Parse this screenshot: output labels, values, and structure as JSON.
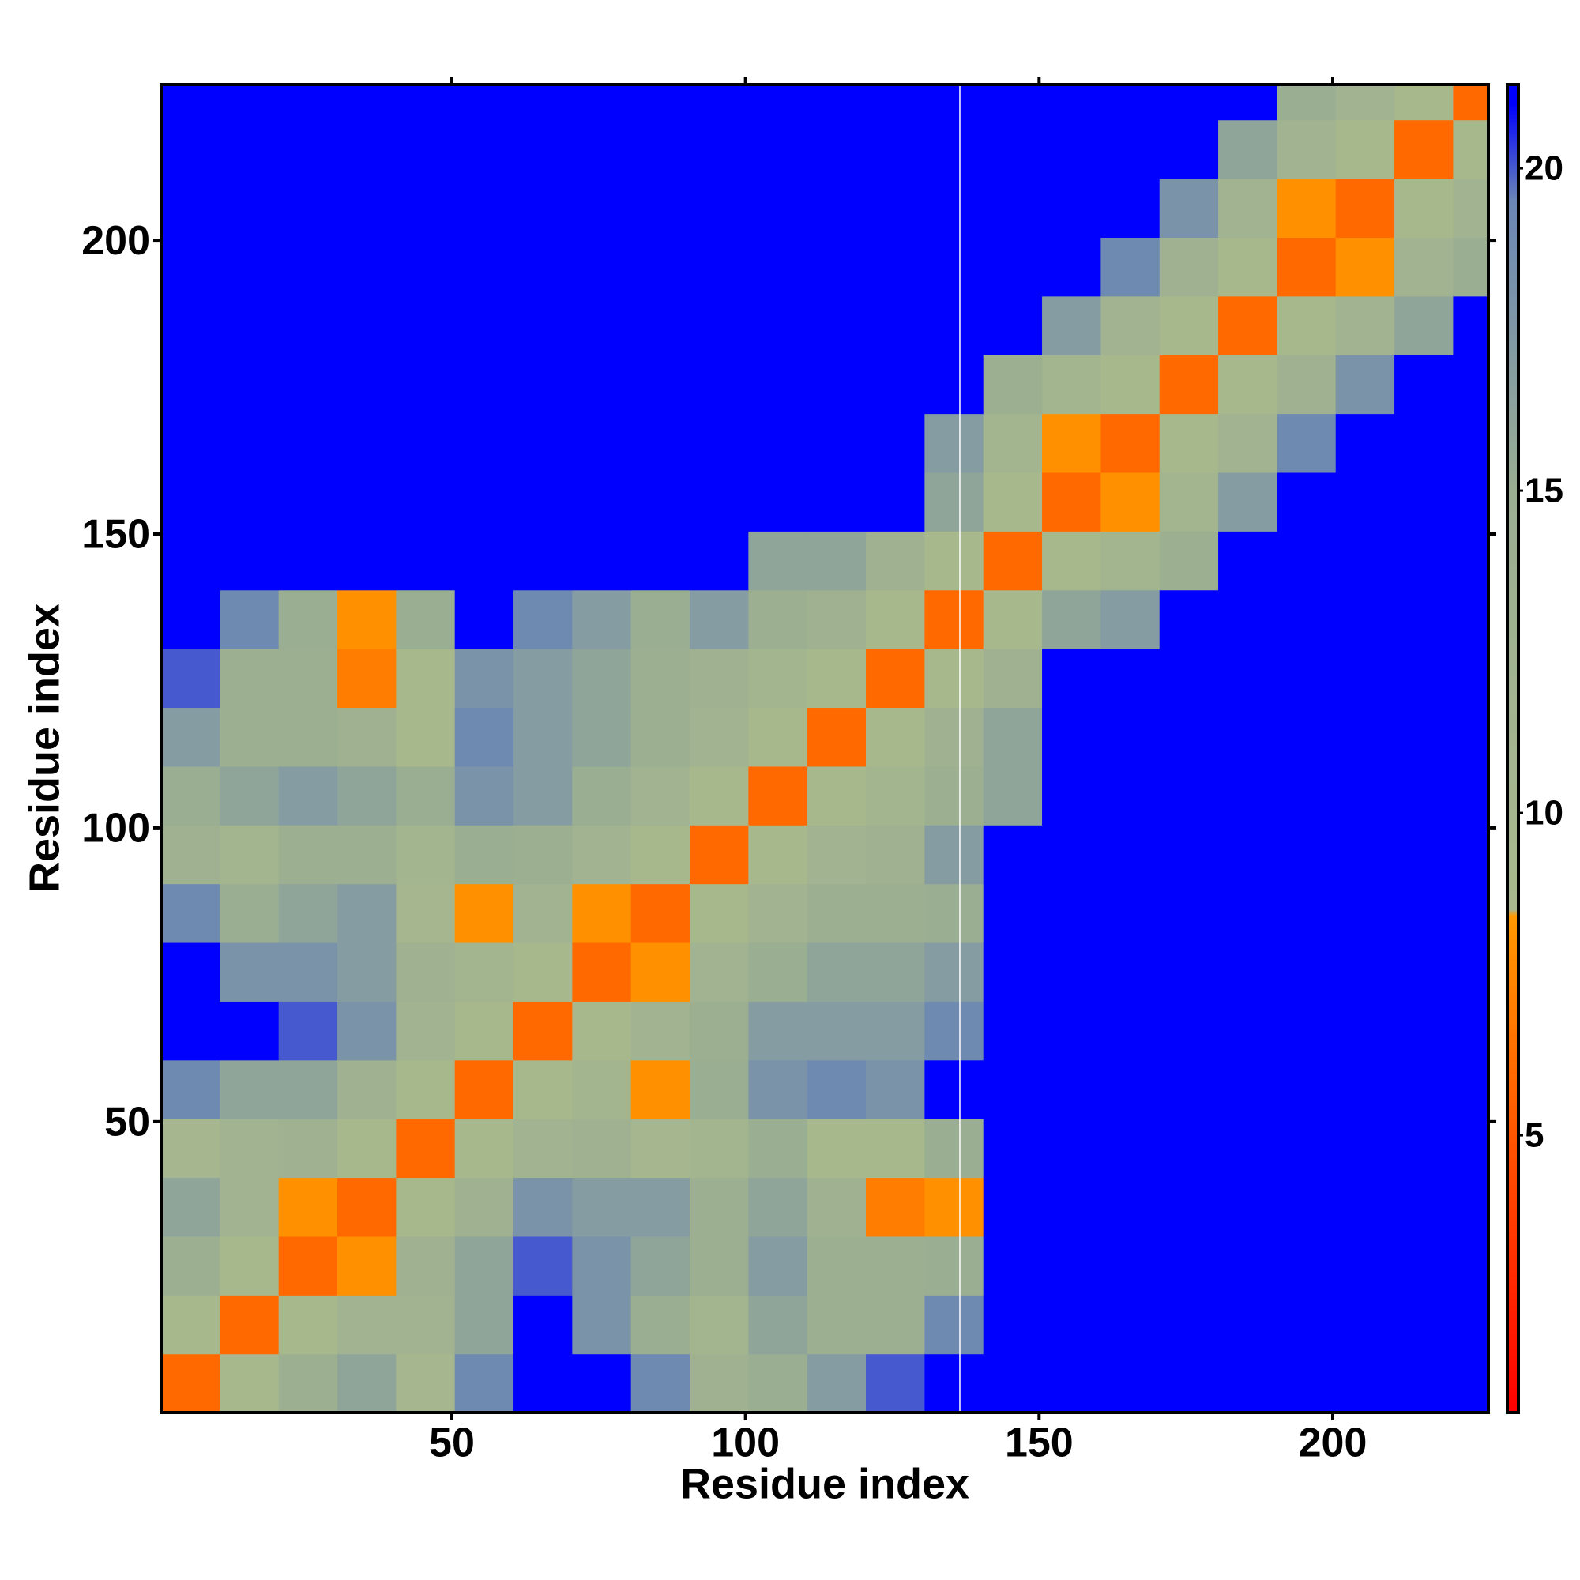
{
  "chart_data": {
    "type": "heatmap",
    "x_label": "Residue index",
    "y_label": "Residue index",
    "bins": [
      0.5,
      10.5,
      20.5,
      30.5,
      40.5,
      50.5,
      60.5,
      70.5,
      80.5,
      90.5,
      100.5,
      110.5,
      120.5,
      130.5,
      140.5,
      150.5,
      160.5,
      170.5,
      180.5,
      190.5,
      200.5,
      210.5,
      220.5,
      226.5
    ],
    "symmetric": true,
    "values": [
      [
        6
      ],
      [
        9,
        6
      ],
      [
        14,
        9,
        6
      ],
      [
        16,
        12,
        8,
        6
      ],
      [
        10,
        12,
        13,
        9,
        6
      ],
      [
        19,
        16,
        16,
        13,
        9,
        6
      ],
      [
        21,
        21,
        20,
        18,
        12,
        9,
        6
      ],
      [
        21,
        18,
        18,
        17,
        13,
        11,
        9,
        6
      ],
      [
        19,
        15,
        16,
        17,
        10,
        8,
        12,
        8,
        6
      ],
      [
        13,
        11,
        14,
        14,
        11,
        15,
        14,
        12,
        9,
        6
      ],
      [
        15,
        16,
        17,
        16,
        15,
        18,
        17,
        15,
        12,
        9,
        6
      ],
      [
        17,
        14,
        14,
        13,
        9,
        19,
        17,
        16,
        14,
        12,
        9,
        6
      ],
      [
        20,
        14,
        14,
        7,
        9,
        18,
        17,
        16,
        14,
        13,
        11,
        9,
        6
      ],
      [
        21,
        19,
        15,
        8,
        15,
        21,
        19,
        17,
        15,
        17,
        14,
        13,
        9,
        6
      ],
      [
        21,
        21,
        21,
        21,
        21,
        21,
        21,
        21,
        21,
        21,
        16,
        16,
        13,
        9,
        6
      ],
      [
        21,
        21,
        21,
        21,
        21,
        21,
        21,
        21,
        21,
        21,
        21,
        21,
        21,
        16,
        9,
        6
      ],
      [
        21,
        21,
        21,
        21,
        21,
        21,
        21,
        21,
        21,
        21,
        21,
        21,
        21,
        17,
        11,
        8,
        6
      ],
      [
        21,
        21,
        21,
        21,
        21,
        21,
        21,
        21,
        21,
        21,
        21,
        21,
        21,
        21,
        14,
        11,
        9,
        6
      ],
      [
        21,
        21,
        21,
        21,
        21,
        21,
        21,
        21,
        21,
        21,
        21,
        21,
        21,
        21,
        21,
        17,
        12,
        9,
        6
      ],
      [
        21,
        21,
        21,
        21,
        21,
        21,
        21,
        21,
        21,
        21,
        21,
        21,
        21,
        21,
        21,
        21,
        19,
        13,
        9,
        6
      ],
      [
        21,
        21,
        21,
        21,
        21,
        21,
        21,
        21,
        21,
        21,
        21,
        21,
        21,
        21,
        21,
        21,
        21,
        18,
        12,
        8,
        6
      ],
      [
        21,
        21,
        21,
        21,
        21,
        21,
        21,
        21,
        21,
        21,
        21,
        21,
        21,
        21,
        21,
        21,
        21,
        21,
        16,
        12,
        9,
        6
      ],
      [
        21,
        21,
        21,
        21,
        21,
        21,
        21,
        21,
        21,
        21,
        21,
        21,
        21,
        21,
        21,
        21,
        21,
        21,
        21,
        15,
        12,
        9,
        6
      ]
    ],
    "xlim": [
      0.5,
      226.5
    ],
    "ylim": [
      0.5,
      226.5
    ],
    "xticks": [
      50,
      100,
      150,
      200
    ],
    "yticks": [
      50,
      100,
      150,
      200
    ],
    "separator_x": 136.5,
    "colorbar": {
      "zlim": [
        0.7,
        21.3
      ],
      "ticks": [
        5,
        10,
        15,
        20
      ],
      "colorscale": [
        [
          0.7,
          "#ff0000"
        ],
        [
          8.4,
          "#ff9900"
        ],
        [
          8.5,
          "#a9b98d"
        ],
        [
          15,
          "#9aae92"
        ],
        [
          19.5,
          "#6a86b5"
        ],
        [
          21,
          "#0000ff"
        ]
      ]
    }
  }
}
